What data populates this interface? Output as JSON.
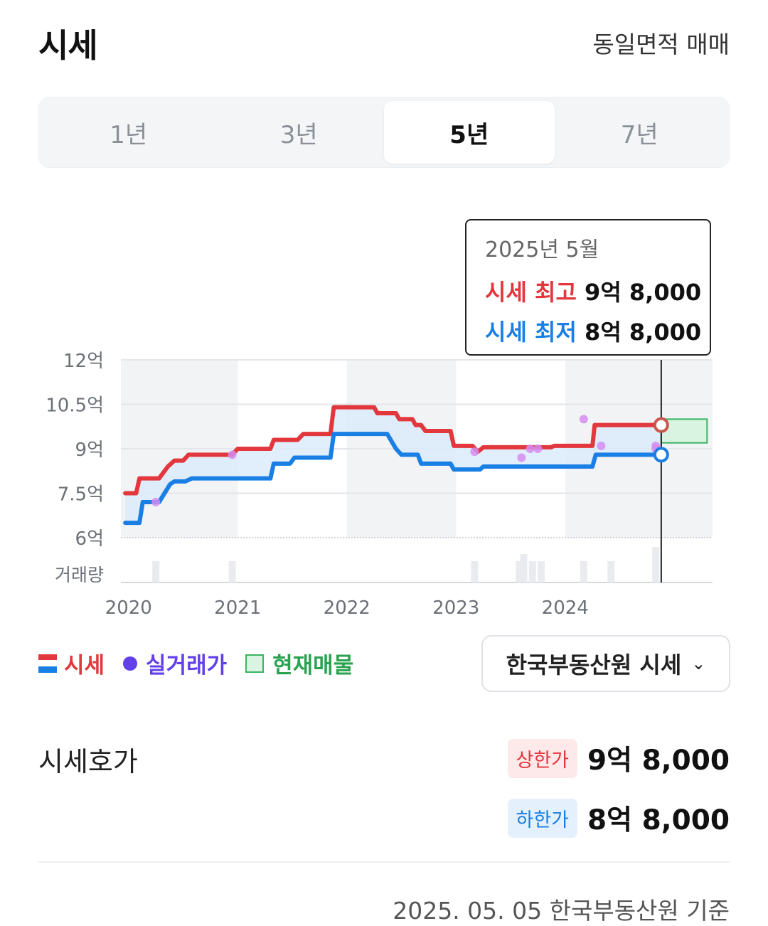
{
  "header": {
    "title": "시세",
    "subtitle": "동일면적 매매"
  },
  "periods": [
    {
      "label": "1년",
      "active": false
    },
    {
      "label": "3년",
      "active": false
    },
    {
      "label": "5년",
      "active": true
    },
    {
      "label": "7년",
      "active": false
    }
  ],
  "tooltip": {
    "date": "2025년 5월",
    "high_label": "시세 최고",
    "high_value": "9억 8,000",
    "low_label": "시세 최저",
    "low_value": "8억 8,000"
  },
  "legend": {
    "price": "시세",
    "deal": "실거래가",
    "listing": "현재매물"
  },
  "source_select": {
    "label": "한국부동산원 시세"
  },
  "ask": {
    "label": "시세호가",
    "upper_badge": "상한가",
    "upper_value": "9억 8,000",
    "lower_badge": "하한가",
    "lower_value": "8억 8,000"
  },
  "footnote": "2025. 05. 05 한국부동산원 기준",
  "colors": {
    "high": "#e2373c",
    "low": "#1a7fe4",
    "deal": "#6340e8",
    "listing": "#3cb460"
  },
  "chart_data": {
    "type": "line",
    "y_unit": "억",
    "ylim": [
      6,
      12
    ],
    "y_ticks": [
      6,
      7.5,
      9,
      10.5,
      12
    ],
    "y_tick_labels": [
      "6억",
      "7.5억",
      "9억",
      "10.5억",
      "12억"
    ],
    "x_ticks": [
      2020,
      2021,
      2022,
      2023,
      2024
    ],
    "x_tick_labels": [
      "2020",
      "2021",
      "2022",
      "2023",
      "2024"
    ],
    "xlim": [
      2019.93,
      2025.35
    ],
    "volume_label": "거래량",
    "series": [
      {
        "name": "시세 최고",
        "points": [
          [
            2019.97,
            7.5
          ],
          [
            2020.07,
            7.5
          ],
          [
            2020.1,
            8.0
          ],
          [
            2020.28,
            8.0
          ],
          [
            2020.32,
            8.2
          ],
          [
            2020.36,
            8.4
          ],
          [
            2020.42,
            8.6
          ],
          [
            2020.5,
            8.6
          ],
          [
            2020.55,
            8.8
          ],
          [
            2020.95,
            8.8
          ],
          [
            2021.0,
            9.0
          ],
          [
            2021.3,
            9.0
          ],
          [
            2021.33,
            9.3
          ],
          [
            2021.55,
            9.3
          ],
          [
            2021.6,
            9.5
          ],
          [
            2021.85,
            9.5
          ],
          [
            2021.88,
            10.4
          ],
          [
            2022.25,
            10.4
          ],
          [
            2022.28,
            10.2
          ],
          [
            2022.45,
            10.2
          ],
          [
            2022.48,
            10.0
          ],
          [
            2022.6,
            10.0
          ],
          [
            2022.63,
            9.8
          ],
          [
            2022.68,
            9.8
          ],
          [
            2022.72,
            9.6
          ],
          [
            2022.95,
            9.6
          ],
          [
            2022.98,
            9.1
          ],
          [
            2023.15,
            9.1
          ],
          [
            2023.2,
            8.9
          ],
          [
            2023.25,
            9.05
          ],
          [
            2023.87,
            9.05
          ],
          [
            2023.9,
            9.1
          ],
          [
            2024.25,
            9.1
          ],
          [
            2024.27,
            9.8
          ],
          [
            2024.88,
            9.8
          ]
        ]
      },
      {
        "name": "시세 최저",
        "points": [
          [
            2019.97,
            6.5
          ],
          [
            2020.1,
            6.5
          ],
          [
            2020.13,
            7.2
          ],
          [
            2020.28,
            7.2
          ],
          [
            2020.33,
            7.5
          ],
          [
            2020.38,
            7.8
          ],
          [
            2020.42,
            7.9
          ],
          [
            2020.52,
            7.9
          ],
          [
            2020.58,
            8.0
          ],
          [
            2021.3,
            8.0
          ],
          [
            2021.33,
            8.5
          ],
          [
            2021.48,
            8.5
          ],
          [
            2021.52,
            8.7
          ],
          [
            2021.85,
            8.7
          ],
          [
            2021.88,
            9.5
          ],
          [
            2022.37,
            9.5
          ],
          [
            2022.45,
            9.0
          ],
          [
            2022.5,
            8.8
          ],
          [
            2022.65,
            8.8
          ],
          [
            2022.68,
            8.5
          ],
          [
            2022.95,
            8.5
          ],
          [
            2022.98,
            8.3
          ],
          [
            2023.22,
            8.3
          ],
          [
            2023.25,
            8.4
          ],
          [
            2024.25,
            8.4
          ],
          [
            2024.28,
            8.8
          ],
          [
            2024.88,
            8.8
          ]
        ]
      }
    ],
    "deals": [
      [
        2020.25,
        7.2
      ],
      [
        2020.95,
        8.8
      ],
      [
        2023.17,
        8.9
      ],
      [
        2023.6,
        8.7
      ],
      [
        2023.68,
        9.0
      ],
      [
        2023.75,
        9.0
      ],
      [
        2024.17,
        10.0
      ],
      [
        2024.33,
        9.1
      ],
      [
        2024.83,
        9.1
      ],
      [
        2024.83,
        9.0
      ]
    ],
    "listing_range": {
      "x_start": 2024.88,
      "x_end": 2025.3,
      "low": 9.2,
      "high": 10.0
    },
    "volume": [
      [
        2020.25,
        0.6
      ],
      [
        2020.95,
        0.6
      ],
      [
        2023.17,
        0.6
      ],
      [
        2023.58,
        0.6
      ],
      [
        2023.62,
        0.8
      ],
      [
        2023.7,
        0.6
      ],
      [
        2023.78,
        0.6
      ],
      [
        2024.17,
        0.6
      ],
      [
        2024.42,
        0.6
      ],
      [
        2024.83,
        1.0
      ]
    ],
    "shaded_years": [
      [
        2019.93,
        2021.0
      ],
      [
        2022.0,
        2023.0
      ],
      [
        2024.0,
        2025.35
      ]
    ],
    "cursor_x": 2024.88,
    "grid": true
  }
}
